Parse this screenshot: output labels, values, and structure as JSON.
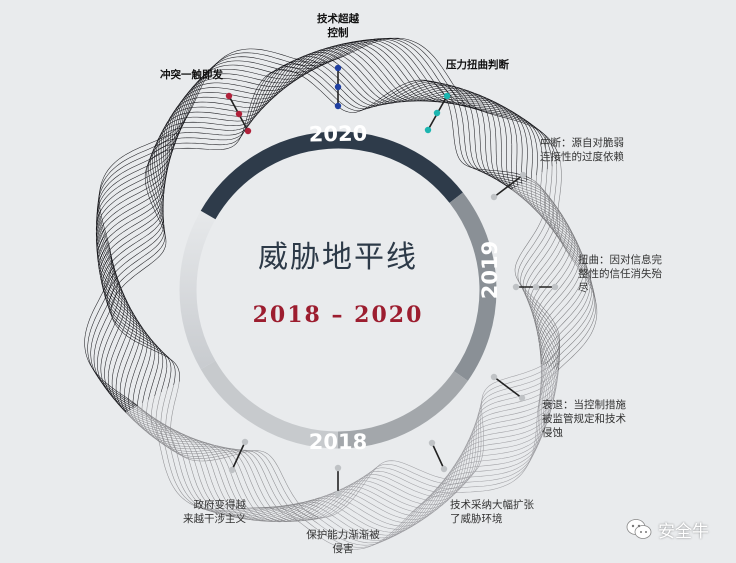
{
  "title": "威胁地平线",
  "range": "2018 – 2020",
  "ring": {
    "year_top": "2020",
    "year_right": "2019",
    "year_bottom": "2018"
  },
  "labels": {
    "tech_control": "技术超越\n控制",
    "conflict": "冲突一触即发",
    "pressure": "压力扭曲判断",
    "disruption": "中断：源自对脆弱\n连接性的过度依赖",
    "distortion": "扭曲：因对信息完\n整性的信任消失殆\n尽",
    "degradation": "衰退：当控制措施\n被监管规定和技术\n侵蚀",
    "tech_adoption": "技术采纳大幅扩张\n了威胁环境",
    "protection": "保护能力渐渐被\n侵害",
    "government": "政府变得越\n来越干涉主义"
  },
  "brand": "安全牛",
  "colors": {
    "ring_dark": "#2e3b4a",
    "ring_grey": "#8a9096",
    "ring_light": "#dde0e3",
    "accent_red": "#9c1d2f",
    "marker_blue": "#1f3fa0",
    "marker_teal": "#1cb5b0",
    "marker_red": "#b0213a"
  }
}
